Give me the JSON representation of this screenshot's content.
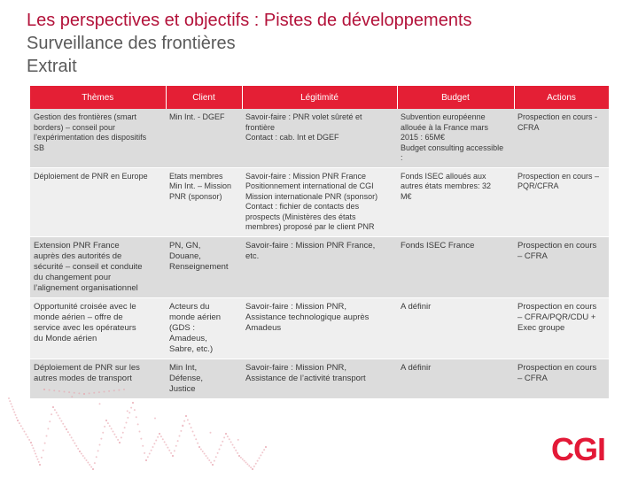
{
  "title": {
    "line1": "Les perspectives et objectifs : Pistes de développements",
    "line2": "Surveillance des frontières",
    "line3": "Extrait"
  },
  "table": {
    "headers": [
      "Thèmes",
      "Client",
      "Légitimité",
      "Budget",
      "Actions"
    ],
    "rows": [
      {
        "theme": [
          "Gestion des frontières (smart",
          "borders) – conseil pour",
          "l’expérimentation des dispositifs",
          "SB"
        ],
        "client": [
          "Min Int. - DGEF"
        ],
        "legitimite": [
          "Savoir-faire : PNR volet sûreté et",
          "frontière",
          "Contact : cab. Int et DGEF"
        ],
        "budget": [
          "Subvention européenne",
          "allouée à la France mars",
          "2015 : 65M€",
          "Budget consulting accessible",
          ":"
        ],
        "actions": [
          "Prospection en cours -",
          "CFRA"
        ]
      },
      {
        "theme": [
          "Déploiement de PNR en Europe"
        ],
        "client": [
          "Etats membres",
          "Min Int. – Mission",
          "PNR (sponsor)"
        ],
        "legitimite": [
          "Savoir-faire : Mission PNR France",
          "Positionnement international de CGI",
          "Mission internationale PNR (sponsor)",
          "Contact : fichier de contacts des",
          "prospects (Ministères des états",
          "membres) proposé par le client PNR"
        ],
        "budget": [
          "Fonds ISEC alloués aux",
          "autres états membres: 32",
          "M€"
        ],
        "actions": [
          "Prospection en cours –",
          "PQR/CFRA"
        ]
      },
      {
        "theme": [
          "Extension PNR France",
          "auprès des autorités de",
          "sécurité – conseil et conduite",
          "du changement pour",
          "l’alignement organisationnel"
        ],
        "client": [
          "PN, GN,",
          "Douane,",
          "Renseignement"
        ],
        "legitimite": [
          "Savoir-faire : Mission PNR France,",
          "etc."
        ],
        "budget": [
          "Fonds ISEC France"
        ],
        "actions": [
          "Prospection en cours",
          "– CFRA"
        ]
      },
      {
        "theme": [
          "Opportunité croisée avec le",
          "monde aérien – offre de",
          "service avec les opérateurs",
          "du Monde aérien"
        ],
        "client": [
          "Acteurs du",
          "monde aérien",
          "(GDS :",
          "Amadeus,",
          "Sabre, etc.)"
        ],
        "legitimite": [
          "Savoir-faire : Mission PNR,",
          "Assistance technologique auprès",
          "Amadeus"
        ],
        "budget": [
          "A définir"
        ],
        "actions": [
          "Prospection en cours",
          "– CFRA/PQR/CDU +",
          "Exec groupe"
        ]
      },
      {
        "theme": [
          "Déploiement de PNR sur les",
          "autres modes de transport"
        ],
        "client": [
          "Min Int,",
          "Défense,",
          "Justice"
        ],
        "legitimite": [
          "Savoir-faire : Mission PNR,",
          "Assistance de l’activité transport"
        ],
        "budget": [
          "A définir"
        ],
        "actions": [
          "Prospection en cours",
          "– CFRA"
        ]
      }
    ]
  },
  "logo": {
    "text": "CGI",
    "color": "#e31937"
  },
  "colors": {
    "header_bg": "#e41f35",
    "title": "#b3123a",
    "row_odd": "#dcdcdc",
    "row_even": "#efefef"
  },
  "decoration": {
    "icon": "dotted-network-icon"
  }
}
